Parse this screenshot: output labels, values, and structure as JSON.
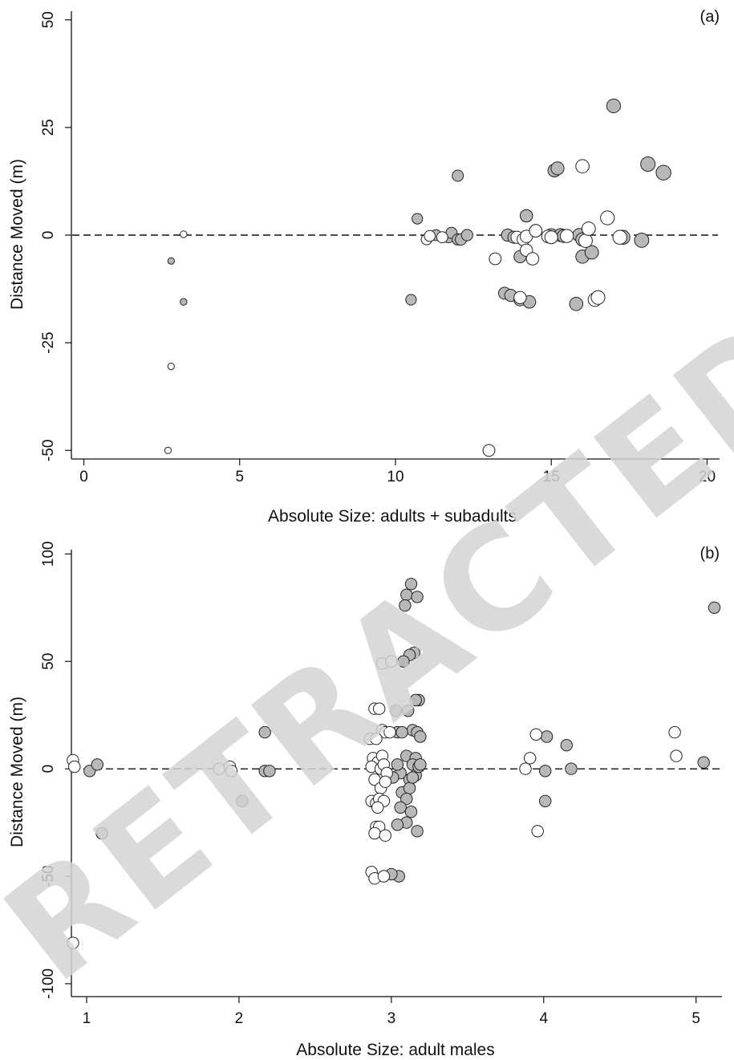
{
  "watermark": {
    "text": "RETRACTED PROOF",
    "color": "#d0d0d0"
  },
  "colors": {
    "filled": "#b8b8b8",
    "open": "#ffffff",
    "stroke": "#222222",
    "axis": "#111111"
  },
  "chart_data": [
    {
      "type": "scatter",
      "panel_label": "(a)",
      "title": "",
      "xlabel": "Absolute Size: adults + subadults",
      "ylabel": "Distance Moved (m)",
      "xlim": [
        -0.4,
        20.4
      ],
      "ylim": [
        -52,
        52
      ],
      "xticks": [
        0,
        5,
        10,
        15,
        20
      ],
      "xtick_labels": [
        "0",
        "5",
        "10",
        "15",
        "20"
      ],
      "yticks": [
        50,
        25,
        0,
        -25,
        -50
      ],
      "ytick_labels": [
        "50",
        "25",
        "0",
        "-25",
        "-50"
      ],
      "reference_line": {
        "y": 0,
        "style": "dashed"
      },
      "marker_size_note": "marker radius increases with absolute size",
      "series": [
        {
          "fill": "filled",
          "points": [
            [
              2.8,
              -6
            ],
            [
              3.2,
              -15.5
            ],
            [
              10.5,
              -15
            ],
            [
              10.7,
              3.8
            ],
            [
              11.3,
              0
            ],
            [
              11.7,
              -0.5
            ],
            [
              11.8,
              0.5
            ],
            [
              12.0,
              -1
            ],
            [
              12.1,
              -1
            ],
            [
              12.0,
              13.8
            ],
            [
              12.3,
              0
            ],
            [
              13.5,
              -13.5
            ],
            [
              13.6,
              0
            ],
            [
              13.8,
              -0.5
            ],
            [
              13.7,
              -14
            ],
            [
              14.0,
              -15
            ],
            [
              14.0,
              -5
            ],
            [
              14.2,
              4.5
            ],
            [
              14.2,
              4.5
            ],
            [
              14.3,
              -15.5
            ],
            [
              14.5,
              1
            ],
            [
              15.0,
              0
            ],
            [
              15.1,
              15
            ],
            [
              15.2,
              15.5
            ],
            [
              15.3,
              0
            ],
            [
              15.4,
              -0.2
            ],
            [
              15.8,
              -16
            ],
            [
              15.9,
              0
            ],
            [
              16.0,
              -5
            ],
            [
              16.0,
              -1
            ],
            [
              16.3,
              -4
            ],
            [
              17.0,
              30
            ],
            [
              17.3,
              -0.5
            ],
            [
              17.9,
              -1.2
            ],
            [
              18.1,
              16.5
            ],
            [
              18.6,
              14.5
            ]
          ]
        },
        {
          "fill": "open",
          "points": [
            [
              3.2,
              0.2
            ],
            [
              2.8,
              -30.5
            ],
            [
              2.7,
              -50
            ],
            [
              11.0,
              -1
            ],
            [
              11.1,
              -0.2
            ],
            [
              11.5,
              -0.5
            ],
            [
              13.0,
              -50
            ],
            [
              13.2,
              -5.5
            ],
            [
              13.9,
              -0.5
            ],
            [
              14.1,
              -1
            ],
            [
              14.2,
              -3.5
            ],
            [
              14.2,
              -0.3
            ],
            [
              14.4,
              -5.5
            ],
            [
              14.5,
              1
            ],
            [
              14.0,
              -14.5
            ],
            [
              14.9,
              -0.3
            ],
            [
              15.0,
              -0.5
            ],
            [
              15.5,
              -0.2
            ],
            [
              16.0,
              16
            ],
            [
              16.1,
              -1.3
            ],
            [
              16.2,
              1.5
            ],
            [
              16.4,
              -15
            ],
            [
              16.5,
              -14.5
            ],
            [
              16.8,
              4
            ],
            [
              17.2,
              -0.5
            ]
          ]
        }
      ]
    },
    {
      "type": "scatter",
      "panel_label": "(b)",
      "title": "",
      "xlabel": "Absolute Size: adult males",
      "ylabel": "Distance Moved (m)",
      "xlim": [
        0.9,
        5.17
      ],
      "ylim": [
        -106,
        102
      ],
      "xticks": [
        1,
        2,
        3,
        4,
        5
      ],
      "xtick_labels": [
        "1",
        "2",
        "3",
        "4",
        "5"
      ],
      "yticks": [
        100,
        50,
        0,
        -50,
        -100
      ],
      "ytick_labels": [
        "100",
        "50",
        "0",
        "-50",
        "-100"
      ],
      "reference_line": {
        "y": 0,
        "style": "dashed"
      },
      "series": [
        {
          "fill": "filled",
          "points": [
            [
              1.02,
              -1
            ],
            [
              1.07,
              2
            ],
            [
              1.1,
              -30
            ],
            [
              2.02,
              -15
            ],
            [
              2.17,
              17
            ],
            [
              2.17,
              -1
            ],
            [
              2.2,
              -1
            ],
            [
              3.13,
              86
            ],
            [
              3.1,
              81
            ],
            [
              3.17,
              80
            ],
            [
              3.09,
              76
            ],
            [
              3.15,
              54
            ],
            [
              3.12,
              53
            ],
            [
              3.08,
              50
            ],
            [
              3.18,
              32
            ],
            [
              3.16,
              32
            ],
            [
              3.03,
              27
            ],
            [
              3.11,
              27
            ],
            [
              3.14,
              18
            ],
            [
              3.17,
              17
            ],
            [
              3.19,
              15
            ],
            [
              3.04,
              17
            ],
            [
              3.07,
              17
            ],
            [
              3.1,
              6
            ],
            [
              3.16,
              5
            ],
            [
              3.14,
              2
            ],
            [
              3.06,
              -2
            ],
            [
              3.04,
              2
            ],
            [
              3.01,
              -4
            ],
            [
              3.12,
              -5
            ],
            [
              3.16,
              -3
            ],
            [
              3.18,
              1
            ],
            [
              3.07,
              -11
            ],
            [
              3.12,
              -9
            ],
            [
              3.1,
              -14
            ],
            [
              3.06,
              -18
            ],
            [
              3.13,
              -20
            ],
            [
              3.1,
              -25
            ],
            [
              3.04,
              -26
            ],
            [
              3.17,
              -29
            ],
            [
              3.05,
              -50
            ],
            [
              3.0,
              -49
            ],
            [
              3.19,
              2
            ],
            [
              3.14,
              -4
            ],
            [
              4.02,
              15
            ],
            [
              4.01,
              -1
            ],
            [
              4.01,
              -15
            ],
            [
              4.15,
              11
            ],
            [
              4.18,
              0
            ],
            [
              5.05,
              3
            ],
            [
              5.12,
              75
            ]
          ]
        },
        {
          "fill": "open",
          "points": [
            [
              0.91,
              4
            ],
            [
              0.92,
              1
            ],
            [
              0.91,
              -81
            ],
            [
              1.87,
              0
            ],
            [
              1.94,
              1
            ],
            [
              1.95,
              -1
            ],
            [
              2.94,
              49
            ],
            [
              3.0,
              50
            ],
            [
              2.89,
              28
            ],
            [
              2.92,
              28
            ],
            [
              2.94,
              18
            ],
            [
              2.96,
              17
            ],
            [
              2.99,
              17
            ],
            [
              2.86,
              14
            ],
            [
              2.9,
              14
            ],
            [
              2.88,
              5
            ],
            [
              2.91,
              3
            ],
            [
              2.94,
              6
            ],
            [
              2.87,
              1
            ],
            [
              2.93,
              0
            ],
            [
              2.95,
              2
            ],
            [
              2.97,
              -2
            ],
            [
              2.89,
              -5
            ],
            [
              2.93,
              -9
            ],
            [
              2.96,
              -6
            ],
            [
              2.87,
              -15
            ],
            [
              2.9,
              -16
            ],
            [
              2.92,
              -14
            ],
            [
              2.95,
              -15
            ],
            [
              2.9,
              -27
            ],
            [
              2.92,
              -27
            ],
            [
              2.89,
              -30
            ],
            [
              2.96,
              -31
            ],
            [
              2.87,
              -48
            ],
            [
              2.89,
              -51
            ],
            [
              2.95,
              -50
            ],
            [
              2.91,
              -18
            ],
            [
              3.95,
              16
            ],
            [
              3.88,
              0
            ],
            [
              3.91,
              5
            ],
            [
              3.96,
              -29
            ],
            [
              4.86,
              17
            ],
            [
              4.87,
              6
            ]
          ]
        }
      ]
    }
  ]
}
